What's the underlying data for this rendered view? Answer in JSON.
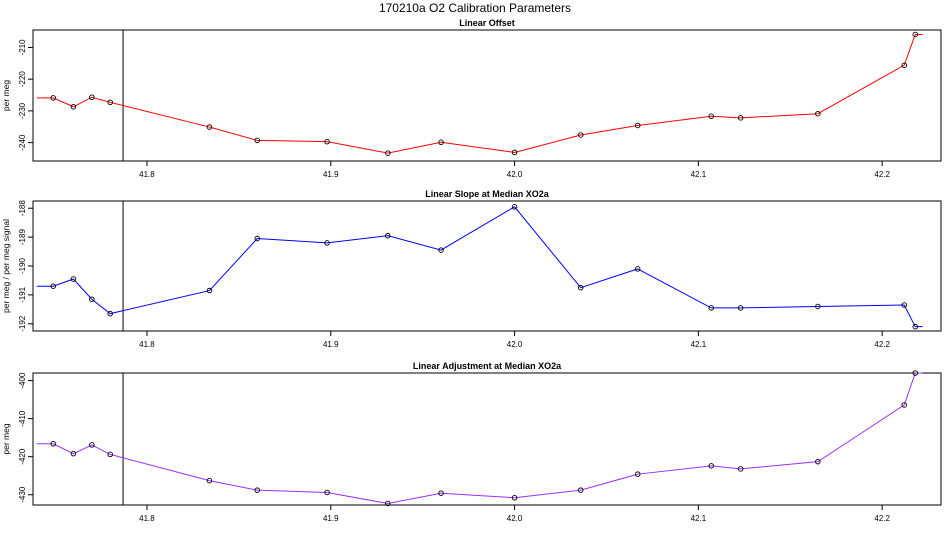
{
  "title": "170210a   O2 Calibration Parameters",
  "chart_data": [
    {
      "type": "line",
      "title": "Linear Offset",
      "xlabel": "",
      "ylabel": "per meg",
      "color": "#ff0000",
      "xlim": [
        41.738,
        42.232
      ],
      "ylim": [
        -245.8,
        -204.5
      ],
      "xticks": [
        41.8,
        41.9,
        42.0,
        42.1,
        42.2
      ],
      "xtick_labels": [
        "41.8",
        "41.9",
        "42.0",
        "42.1",
        "42.2"
      ],
      "yticks": [
        -210,
        -220,
        -230,
        -240
      ],
      "ytick_labels": [
        "-210",
        "-220",
        "-230",
        "-240"
      ],
      "vline_x": 41.787,
      "x": [
        41.74,
        41.749,
        41.76,
        41.77,
        41.78,
        41.834,
        41.86,
        41.898,
        41.931,
        41.96,
        42.0,
        42.036,
        42.067,
        42.107,
        42.123,
        42.165,
        42.212,
        42.218,
        42.222
      ],
      "y": [
        -225.9,
        -225.9,
        -228.7,
        -225.7,
        -227.3,
        -235.1,
        -239.3,
        -239.7,
        -243.3,
        -239.9,
        -243.1,
        -237.6,
        -234.6,
        -231.7,
        -232.2,
        -230.9,
        -215.6,
        -205.9,
        -205.9
      ]
    },
    {
      "type": "line",
      "title": "Linear Slope at Median XO2a",
      "xlabel": "",
      "ylabel": "per meg / per meg signal",
      "color": "#0000ff",
      "xlim": [
        41.738,
        42.232
      ],
      "ylim": [
        -192.25,
        -187.75
      ],
      "xticks": [
        41.8,
        41.9,
        42.0,
        42.1,
        42.2
      ],
      "xtick_labels": [
        "41.8",
        "41.9",
        "42.0",
        "42.1",
        "42.2"
      ],
      "yticks": [
        -188,
        -189,
        -190,
        -191,
        -192
      ],
      "ytick_labels": [
        "-188",
        "-189",
        "-190",
        "-191",
        "-192"
      ],
      "vline_x": 41.787,
      "x": [
        41.74,
        41.749,
        41.76,
        41.77,
        41.78,
        41.834,
        41.86,
        41.898,
        41.931,
        41.96,
        42.0,
        42.036,
        42.067,
        42.107,
        42.123,
        42.165,
        42.212,
        42.218,
        42.222
      ],
      "y": [
        -190.7,
        -190.7,
        -190.45,
        -191.15,
        -191.65,
        -190.85,
        -189.05,
        -189.2,
        -188.95,
        -189.45,
        -187.95,
        -190.75,
        -190.1,
        -191.45,
        -191.45,
        -191.4,
        -191.35,
        -192.1,
        -192.1
      ]
    },
    {
      "type": "line",
      "title": "Linear Adjustment at Median XO2a",
      "xlabel": "",
      "ylabel": "per meg",
      "color": "#9b30ff",
      "xlim": [
        41.738,
        42.232
      ],
      "ylim": [
        -432.7,
        -398.0
      ],
      "xticks": [
        41.8,
        41.9,
        42.0,
        42.1,
        42.2
      ],
      "xtick_labels": [
        "41.8",
        "41.9",
        "42.0",
        "42.1",
        "42.2"
      ],
      "yticks": [
        -400,
        -410,
        -420,
        -430
      ],
      "ytick_labels": [
        "-400",
        "-410",
        "-420",
        "-430"
      ],
      "vline_x": 41.787,
      "x": [
        41.74,
        41.749,
        41.76,
        41.77,
        41.78,
        41.834,
        41.86,
        41.898,
        41.931,
        41.96,
        42.0,
        42.036,
        42.067,
        42.107,
        42.123,
        42.165,
        42.212,
        42.218,
        42.222
      ],
      "y": [
        -416.6,
        -416.6,
        -419.2,
        -416.9,
        -419.4,
        -426.3,
        -428.8,
        -429.4,
        -432.3,
        -429.6,
        -430.8,
        -428.8,
        -424.6,
        -422.4,
        -423.2,
        -421.3,
        -406.4,
        -398.0,
        -398.0
      ]
    }
  ]
}
